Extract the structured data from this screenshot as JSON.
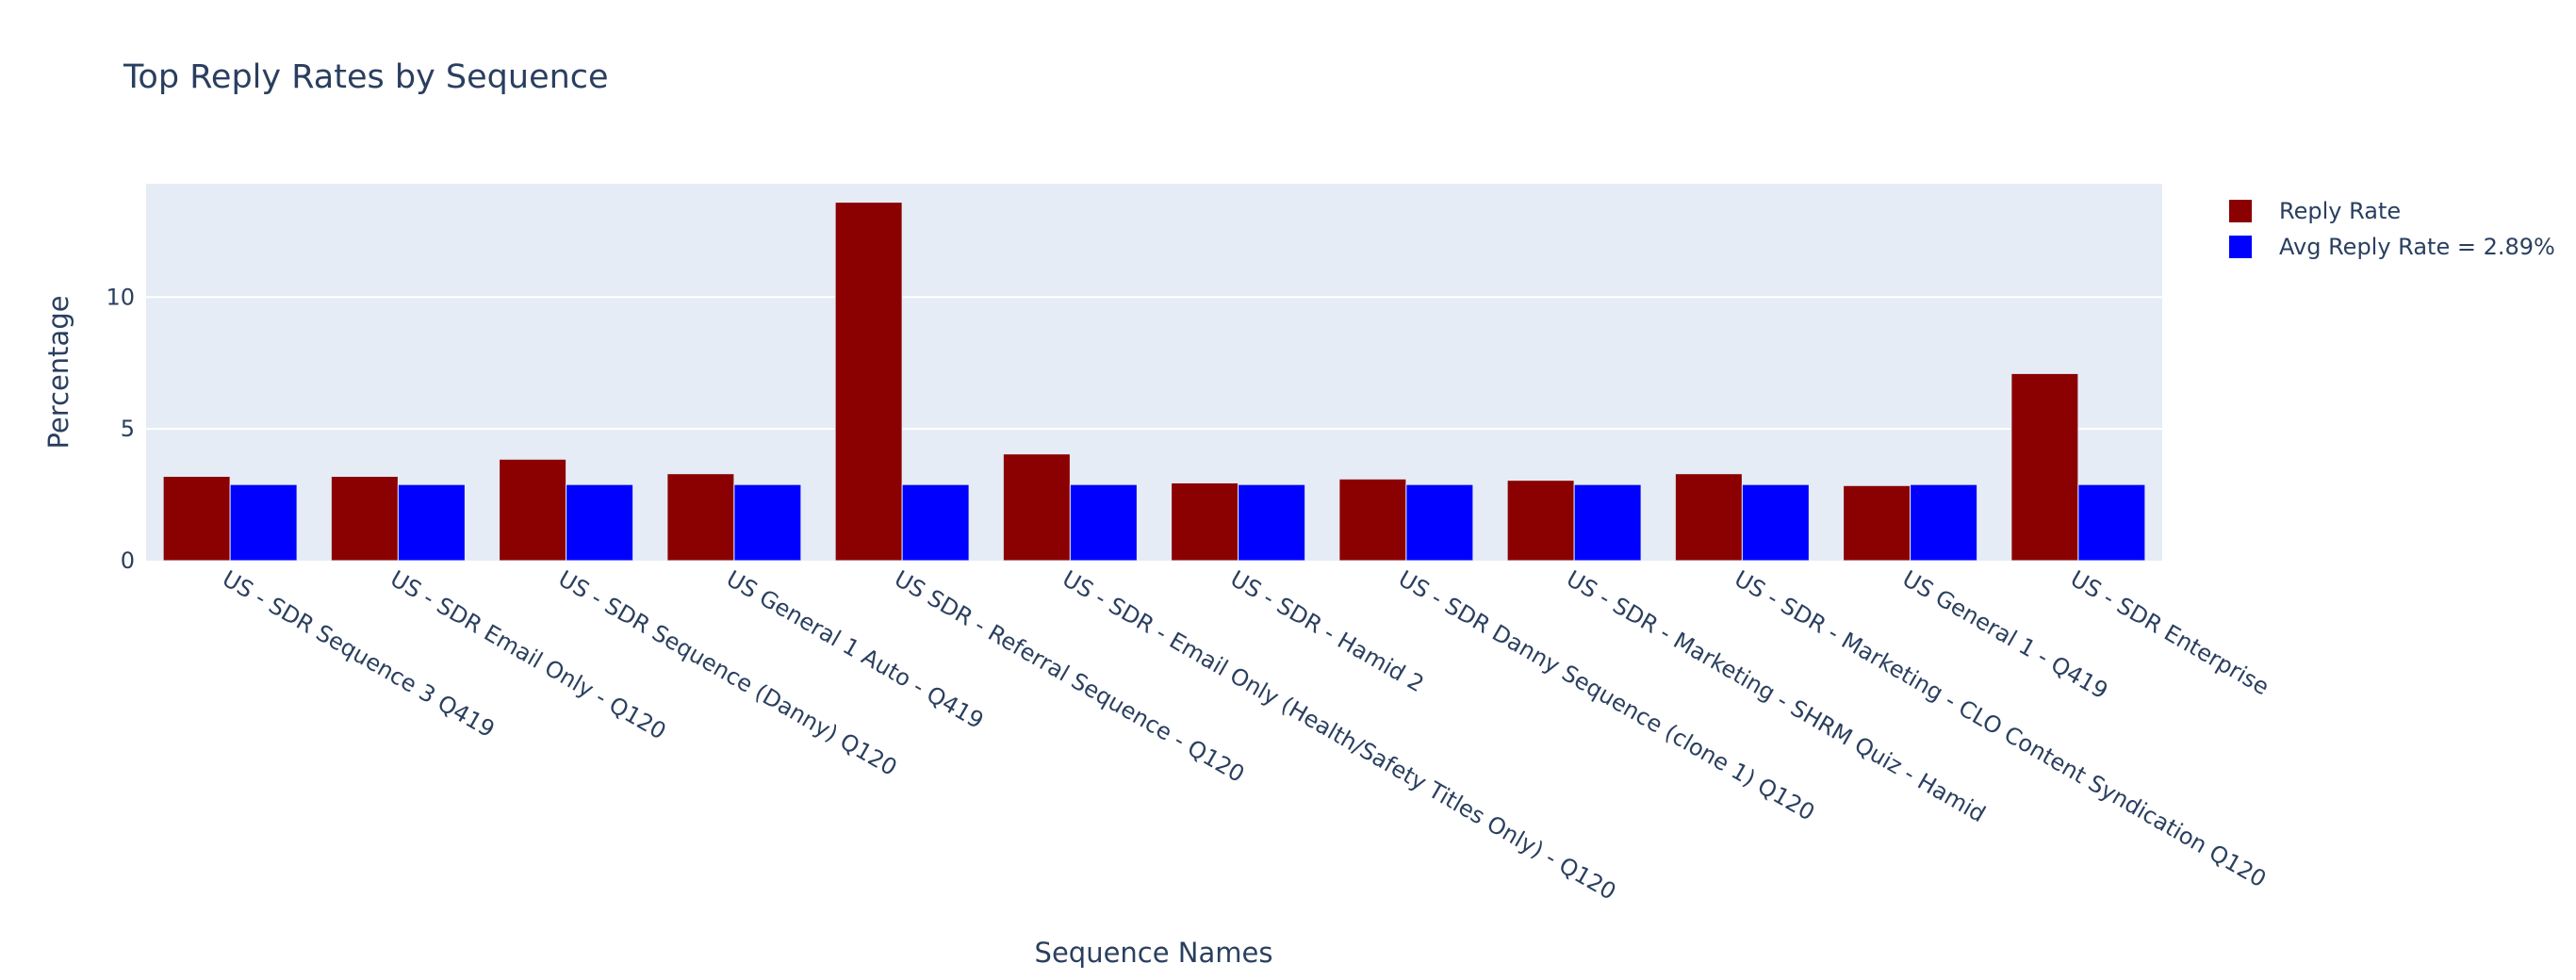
{
  "chart_data": {
    "type": "bar",
    "title": "Top Reply Rates by Sequence",
    "xlabel": "Sequence Names",
    "ylabel": "Percentage",
    "ylim": [
      0,
      14.3
    ],
    "yticks": [
      0,
      5,
      10
    ],
    "grid": true,
    "legend_position": "top-right",
    "categories": [
      "US - SDR Sequence 3 Q419",
      "US - SDR Email Only  - Q120",
      "US - SDR Sequence (Danny) Q120",
      "US General 1 Auto - Q419",
      "US SDR -  Referral Sequence - Q120",
      "US - SDR - Email Only (Health/Safety Titles Only) - Q120",
      "US - SDR - Hamid 2",
      "US - SDR Danny Sequence (clone 1) Q120",
      "US - SDR - Marketing - SHRM Quiz - Hamid",
      "US - SDR - Marketing - CLO Content Syndication Q120",
      "US General 1 -  Q419",
      "US - SDR Enterprise"
    ],
    "series": [
      {
        "name": "Reply Rate",
        "color": "#8b0000",
        "values": [
          3.2,
          3.2,
          3.85,
          3.3,
          13.6,
          4.05,
          2.95,
          3.1,
          3.05,
          3.3,
          2.85,
          7.1
        ]
      },
      {
        "name": "Avg Reply Rate = 2.89%",
        "color": "#0000ff",
        "values": [
          2.89,
          2.89,
          2.89,
          2.89,
          2.89,
          2.89,
          2.89,
          2.89,
          2.89,
          2.89,
          2.89,
          2.89
        ]
      }
    ],
    "colors": {
      "plot_background": "#e5ecf6",
      "gridline": "#ffffff",
      "text": "#2a3f5f"
    }
  }
}
